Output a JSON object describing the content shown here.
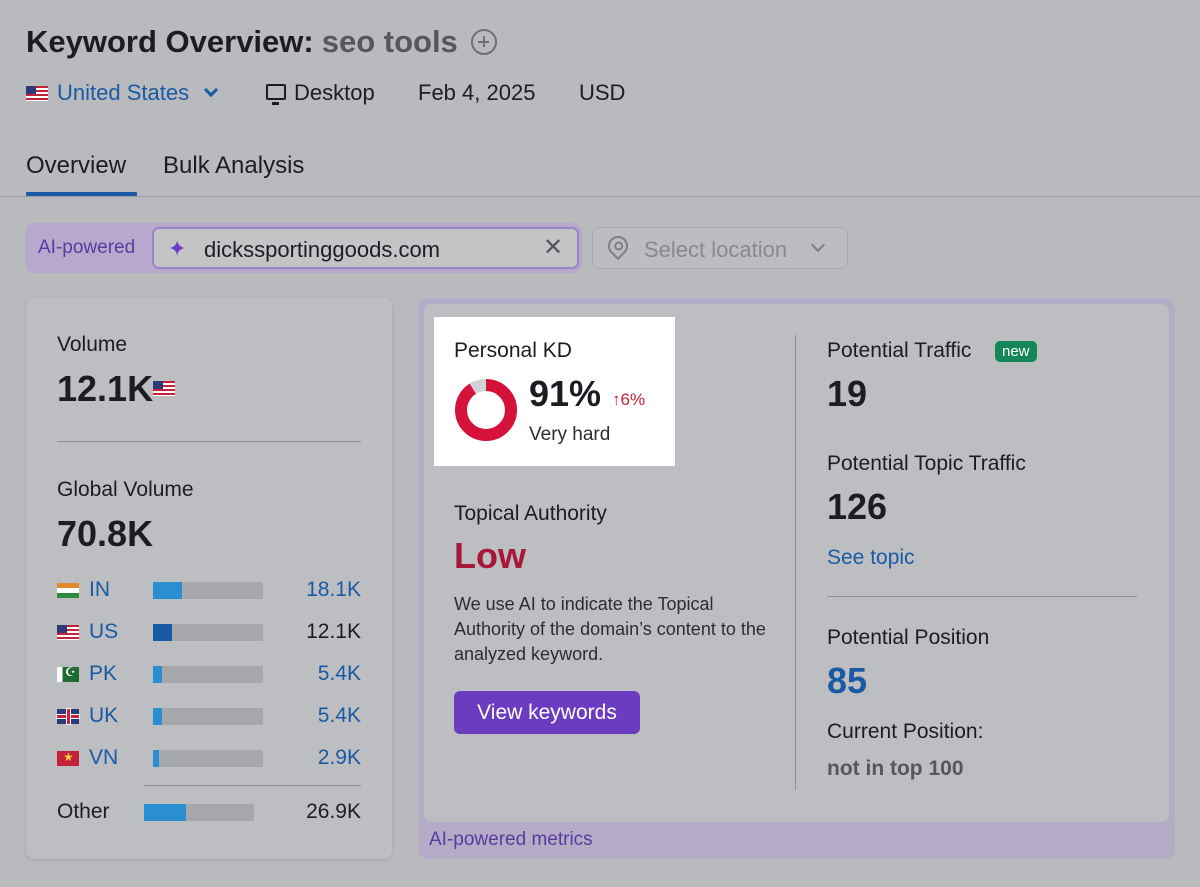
{
  "header": {
    "title": "Keyword Overview:",
    "keyword": "seo tools",
    "country": "United States",
    "device": "Desktop",
    "date": "Feb 4, 2025",
    "currency": "USD"
  },
  "tabs": [
    {
      "label": "Overview",
      "active": true
    },
    {
      "label": "Bulk Analysis",
      "active": false
    }
  ],
  "ai_bar": {
    "label": "AI-powered",
    "domain": "dickssportinggoods.com",
    "location_placeholder": "Select location"
  },
  "volume": {
    "label": "Volume",
    "value": "12.1K",
    "global_label": "Global Volume",
    "global_value": "70.8K",
    "countries": [
      {
        "code": "IN",
        "value": "18.1K",
        "share": 0.26
      },
      {
        "code": "US",
        "value": "12.1K",
        "share": 0.17
      },
      {
        "code": "PK",
        "value": "5.4K",
        "share": 0.08
      },
      {
        "code": "UK",
        "value": "5.4K",
        "share": 0.08
      },
      {
        "code": "VN",
        "value": "2.9K",
        "share": 0.05
      }
    ],
    "other": {
      "label": "Other",
      "value": "26.9K",
      "share": 0.38
    }
  },
  "personal_kd": {
    "label": "Personal KD",
    "value": "91%",
    "percent": 91,
    "change": "↑6%",
    "difficulty": "Very hard"
  },
  "topical_authority": {
    "label": "Topical Authority",
    "value": "Low",
    "description": "We use AI to indicate the Topical Authority of the domain’s content to the analyzed keyword.",
    "button": "View keywords"
  },
  "potential": {
    "traffic_label": "Potential Traffic",
    "new_badge": "new",
    "traffic_value": "19",
    "topic_traffic_label": "Potential Topic Traffic",
    "topic_traffic_value": "126",
    "see_topic": "See topic",
    "position_label": "Potential Position",
    "position_value": "85",
    "current_label": "Current Position:",
    "current_value": "not in top 100"
  },
  "footer": {
    "ai_metrics": "AI-powered metrics"
  },
  "colors": {
    "accent_blue": "#1a5aa5",
    "purple": "#6b3cc0",
    "kd_red": "#d4123a",
    "low_red": "#a8173a",
    "new_green": "#14875a"
  }
}
